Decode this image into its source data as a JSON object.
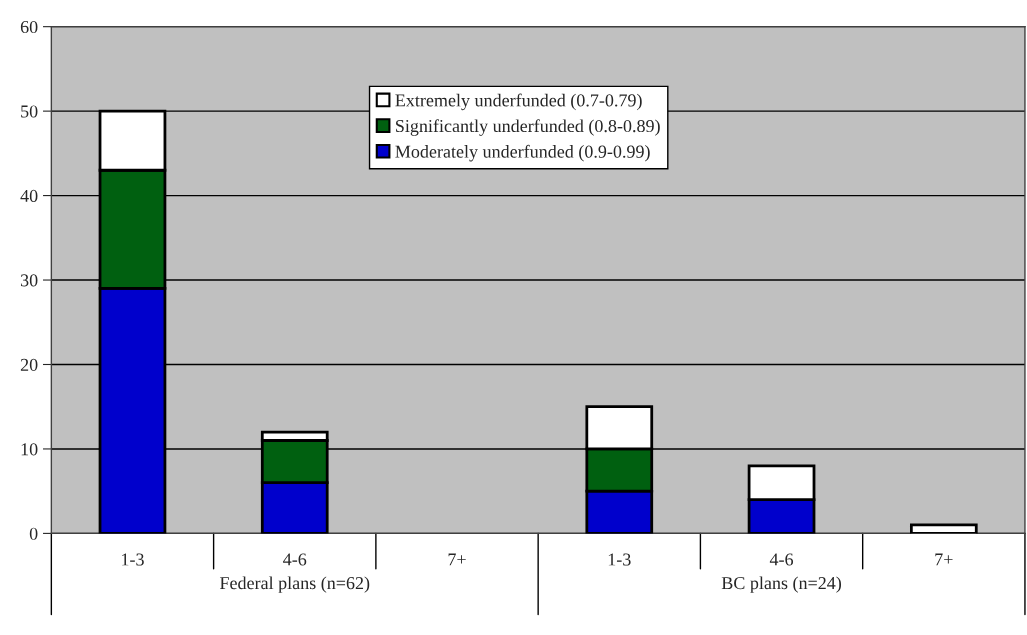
{
  "chart_data": {
    "type": "bar",
    "stacked": true,
    "categories": [
      "1-3",
      "4-6",
      "7+",
      "1-3",
      "4-6",
      "7+"
    ],
    "series": [
      {
        "name": "Moderately underfunded (0.9-0.99)",
        "color": "#0000cc",
        "values": [
          29,
          6,
          0,
          5,
          4,
          0
        ]
      },
      {
        "name": "Significantly underfunded (0.8-0.89)",
        "color": "#006010",
        "values": [
          14,
          5,
          0,
          5,
          0,
          0
        ]
      },
      {
        "name": "Extremely underfunded (0.7-0.79)",
        "color": "#ffffff",
        "values": [
          7,
          1,
          0,
          5,
          4,
          1
        ]
      }
    ],
    "ylim": [
      0,
      60
    ],
    "yticks": [
      0,
      10,
      20,
      30,
      40,
      50,
      60
    ],
    "grid": "y",
    "legend": "top",
    "annotations": [
      "Federal plans (n=62)",
      "BC plans (n=24)"
    ]
  }
}
